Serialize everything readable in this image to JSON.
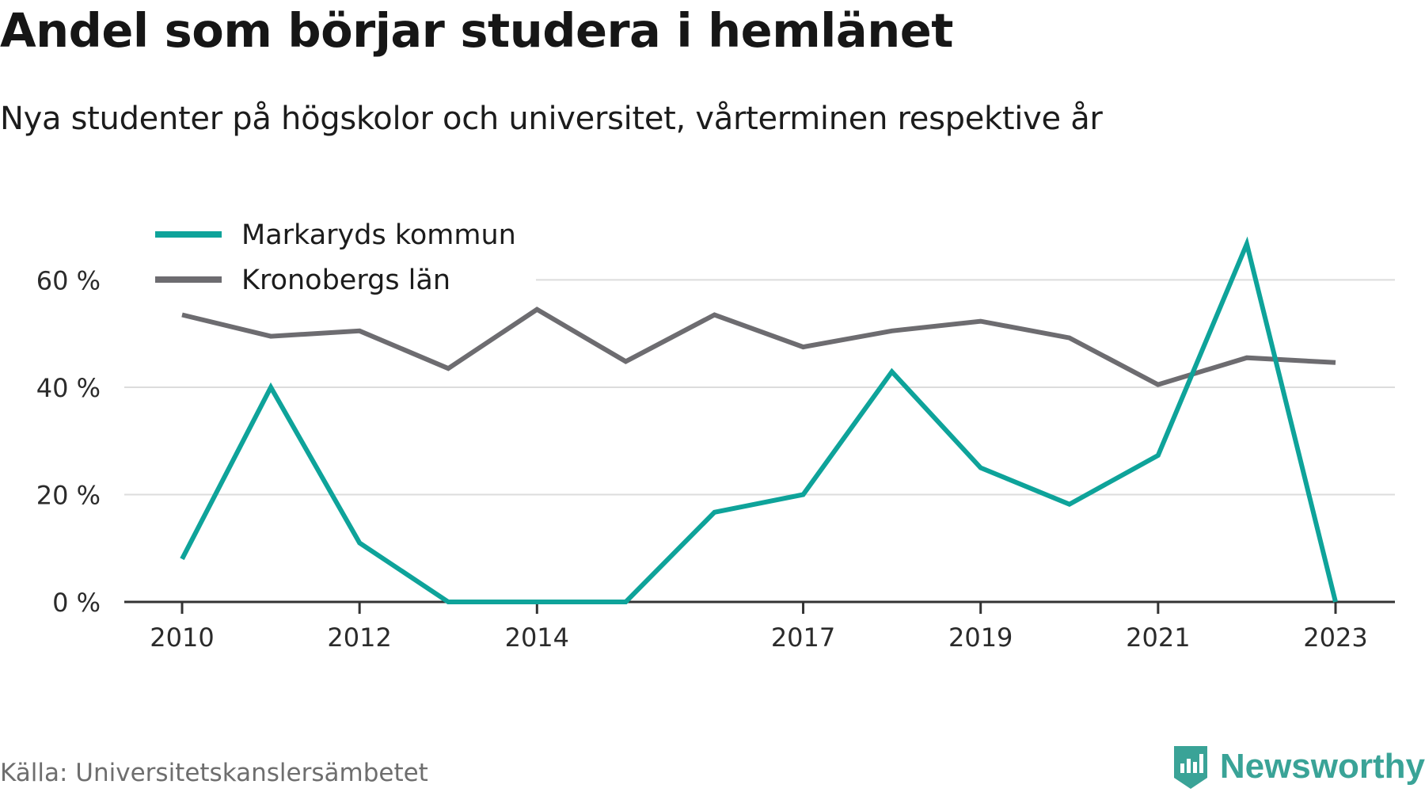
{
  "title": "Andel som börjar studera i hemlänet",
  "subtitle": "Nya studenter på högskolor och universitet, vårterminen respektive år",
  "source": "Källa: Universitetskanslersämbetet",
  "brand": "Newsworthy",
  "chart_data": {
    "type": "line",
    "xlim": [
      2010,
      2023
    ],
    "ylim": [
      0,
      67
    ],
    "y_ticks": [
      0,
      20,
      40,
      60
    ],
    "y_tick_labels": [
      "0 %",
      "20 %",
      "40 %",
      "60 %"
    ],
    "x_ticks": [
      2010,
      2012,
      2014,
      2017,
      2019,
      2021,
      2023
    ],
    "x_tick_labels": [
      "2010",
      "2012",
      "2014",
      "2017",
      "2019",
      "2021",
      "2023"
    ],
    "grid": true,
    "legend_position": "top-left",
    "x": [
      2010,
      2011,
      2012,
      2013,
      2014,
      2015,
      2016,
      2017,
      2018,
      2019,
      2020,
      2021,
      2022,
      2023
    ],
    "series": [
      {
        "name": "Markaryds kommun",
        "color": "#0ea39a",
        "values": [
          8,
          40,
          11,
          0,
          0,
          0,
          16.7,
          20,
          42.9,
          25,
          18.2,
          27.3,
          66.7,
          0
        ]
      },
      {
        "name": "Kronobergs län",
        "color": "#6d6c70",
        "values": [
          53.5,
          49.5,
          50.5,
          43.5,
          54.5,
          44.8,
          53.5,
          47.5,
          50.5,
          52.3,
          49.2,
          40.5,
          45.5,
          44.6
        ]
      }
    ]
  }
}
